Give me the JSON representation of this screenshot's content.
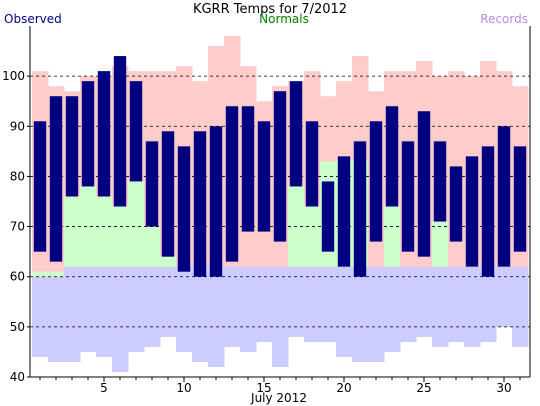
{
  "chart_data": {
    "type": "bar",
    "title": "KGRR Temps for 7/2012",
    "xlabel": "July 2012",
    "ylabel": "",
    "ylim": [
      40,
      110
    ],
    "y_ticks": [
      40,
      50,
      60,
      70,
      80,
      90,
      100
    ],
    "x_ticks": [
      5,
      10,
      15,
      20,
      25,
      30
    ],
    "grid": "horizontal dashed",
    "legend": [
      {
        "name": "Observed",
        "color": "#000080",
        "placement": "top-left"
      },
      {
        "name": "Normals",
        "color": "#008000",
        "placement": "top-center"
      },
      {
        "name": "Records",
        "color": "#b090e0",
        "placement": "top-right"
      }
    ],
    "colors": {
      "observed": "#000080",
      "normals": "#ccffcc",
      "record_high": "#ffcccc",
      "record_low": "#ccccff"
    },
    "days": [
      1,
      2,
      3,
      4,
      5,
      6,
      7,
      8,
      9,
      10,
      11,
      12,
      13,
      14,
      15,
      16,
      17,
      18,
      19,
      20,
      21,
      22,
      23,
      24,
      25,
      26,
      27,
      28,
      29,
      30,
      31
    ],
    "series": [
      {
        "name": "Observed",
        "highs": [
          91,
          96,
          96,
          99,
          101,
          104,
          99,
          87,
          89,
          86,
          89,
          90,
          94,
          94,
          91,
          97,
          99,
          91,
          79,
          84,
          87,
          91,
          94,
          87,
          93,
          87,
          82,
          84,
          86,
          90,
          86
        ],
        "lows": [
          65,
          63,
          76,
          78,
          76,
          74,
          79,
          70,
          64,
          61,
          60,
          60,
          63,
          69,
          69,
          67,
          78,
          74,
          65,
          62,
          60,
          67,
          74,
          65,
          64,
          71,
          67,
          62,
          60,
          62,
          65
        ]
      },
      {
        "name": "Normals",
        "highs": [
          61,
          61,
          76,
          78,
          76,
          74,
          79,
          70,
          64,
          62,
          62,
          62,
          62,
          62,
          62,
          62,
          78,
          74,
          83,
          83,
          83,
          62,
          74,
          62,
          62,
          71,
          62,
          62,
          62,
          62,
          62
        ],
        "lows": [
          60,
          60,
          62,
          62,
          62,
          62,
          62,
          62,
          62,
          62,
          62,
          62,
          62,
          62,
          62,
          62,
          62,
          62,
          62,
          62,
          62,
          62,
          62,
          62,
          62,
          62,
          62,
          62,
          62,
          62,
          62
        ]
      },
      {
        "name": "Record High",
        "values": [
          101,
          98,
          97,
          100,
          100,
          102,
          101,
          101,
          101,
          102,
          99,
          106,
          108,
          102,
          95,
          98,
          99,
          101,
          96,
          99,
          104,
          97,
          101,
          101,
          103,
          100,
          101,
          100,
          103,
          101,
          98
        ]
      },
      {
        "name": "Record Low",
        "values": [
          44,
          43,
          43,
          45,
          44,
          41,
          45,
          46,
          48,
          45,
          43,
          42,
          46,
          45,
          47,
          42,
          48,
          47,
          47,
          44,
          43,
          43,
          45,
          47,
          48,
          46,
          47,
          46,
          47,
          50,
          46
        ]
      }
    ]
  }
}
